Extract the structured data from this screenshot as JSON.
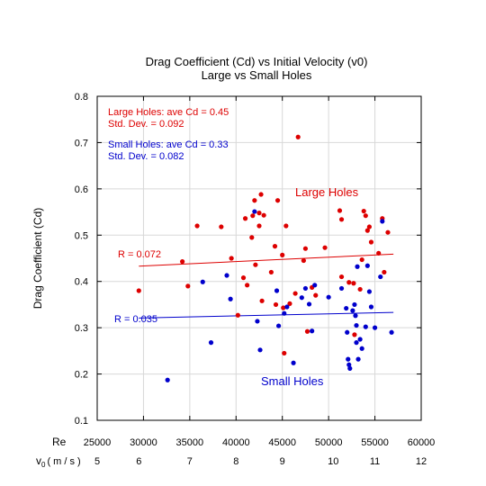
{
  "chart_data": {
    "type": "scatter",
    "title": "Drag Coefficient (Cd) vs Initial Velocity (v0)",
    "subtitle": "Large vs Small Holes",
    "ylabel": "Drag Coefficient (Cd)",
    "xlabel_re": "Re",
    "xlabel_v0_symbol": "v",
    "xlabel_v0_sub": "0",
    "xlabel_v0_unit": "( m / s )",
    "xlim": [
      25000,
      60000
    ],
    "ylim": [
      0.1,
      0.8
    ],
    "x_ticks": [
      "25000",
      "30000",
      "35000",
      "40000",
      "45000",
      "50000",
      "55000",
      "60000"
    ],
    "y_ticks": [
      "0.1",
      "0.2",
      "0.3",
      "0.4",
      "0.5",
      "0.6",
      "0.7",
      "0.8"
    ],
    "v0_ticks": [
      {
        "label": "5",
        "re": 25000
      },
      {
        "label": "6",
        "re": 29500
      },
      {
        "label": "7",
        "re": 35000
      },
      {
        "label": "8",
        "re": 40000
      },
      {
        "label": "9",
        "re": 45000
      },
      {
        "label": "10",
        "re": 50500
      },
      {
        "label": "11",
        "re": 55000
      },
      {
        "label": "12",
        "re": 60000
      }
    ],
    "grid": true,
    "series": [
      {
        "name": "Large Holes",
        "color": "#dd0000",
        "fit": {
          "x": [
            29500,
            57000
          ],
          "y": [
            0.433,
            0.459
          ]
        },
        "points": [
          [
            29500,
            0.38
          ],
          [
            34200,
            0.443
          ],
          [
            34800,
            0.39
          ],
          [
            35800,
            0.52
          ],
          [
            38400,
            0.518
          ],
          [
            39500,
            0.45
          ],
          [
            40200,
            0.327
          ],
          [
            40800,
            0.408
          ],
          [
            41000,
            0.536
          ],
          [
            41200,
            0.392
          ],
          [
            41700,
            0.495
          ],
          [
            41800,
            0.542
          ],
          [
            42000,
            0.575
          ],
          [
            42100,
            0.436
          ],
          [
            42500,
            0.548
          ],
          [
            42500,
            0.52
          ],
          [
            42700,
            0.588
          ],
          [
            42800,
            0.358
          ],
          [
            43000,
            0.543
          ],
          [
            43800,
            0.42
          ],
          [
            44200,
            0.476
          ],
          [
            44300,
            0.35
          ],
          [
            44500,
            0.575
          ],
          [
            45000,
            0.457
          ],
          [
            45100,
            0.343
          ],
          [
            45200,
            0.245
          ],
          [
            45400,
            0.52
          ],
          [
            45800,
            0.352
          ],
          [
            46400,
            0.374
          ],
          [
            46700,
            0.712
          ],
          [
            47300,
            0.445
          ],
          [
            47500,
            0.471
          ],
          [
            47700,
            0.292
          ],
          [
            48200,
            0.387
          ],
          [
            48600,
            0.37
          ],
          [
            49600,
            0.473
          ],
          [
            51200,
            0.553
          ],
          [
            51400,
            0.534
          ],
          [
            51400,
            0.41
          ],
          [
            52200,
            0.398
          ],
          [
            52700,
            0.396
          ],
          [
            52800,
            0.285
          ],
          [
            53400,
            0.383
          ],
          [
            53600,
            0.447
          ],
          [
            53800,
            0.552
          ],
          [
            54000,
            0.542
          ],
          [
            54200,
            0.51
          ],
          [
            54400,
            0.518
          ],
          [
            54600,
            0.485
          ],
          [
            55400,
            0.461
          ],
          [
            55800,
            0.536
          ],
          [
            56000,
            0.42
          ],
          [
            56400,
            0.506
          ]
        ]
      },
      {
        "name": "Small Holes",
        "color": "#0000cc",
        "fit": {
          "x": [
            29500,
            57000
          ],
          "y": [
            0.321,
            0.333
          ]
        },
        "points": [
          [
            32600,
            0.187
          ],
          [
            36400,
            0.399
          ],
          [
            37300,
            0.268
          ],
          [
            39000,
            0.413
          ],
          [
            39400,
            0.362
          ],
          [
            42000,
            0.551
          ],
          [
            42300,
            0.314
          ],
          [
            42600,
            0.252
          ],
          [
            44400,
            0.38
          ],
          [
            44600,
            0.304
          ],
          [
            45200,
            0.331
          ],
          [
            45500,
            0.345
          ],
          [
            46200,
            0.224
          ],
          [
            47100,
            0.365
          ],
          [
            47500,
            0.385
          ],
          [
            47900,
            0.351
          ],
          [
            48200,
            0.293
          ],
          [
            48500,
            0.392
          ],
          [
            50000,
            0.366
          ],
          [
            51400,
            0.385
          ],
          [
            51900,
            0.342
          ],
          [
            52000,
            0.29
          ],
          [
            52100,
            0.232
          ],
          [
            52200,
            0.22
          ],
          [
            52300,
            0.212
          ],
          [
            52600,
            0.337
          ],
          [
            52800,
            0.35
          ],
          [
            52900,
            0.326
          ],
          [
            53000,
            0.268
          ],
          [
            53000,
            0.305
          ],
          [
            53100,
            0.432
          ],
          [
            53200,
            0.232
          ],
          [
            53400,
            0.275
          ],
          [
            53600,
            0.255
          ],
          [
            54000,
            0.302
          ],
          [
            54200,
            0.434
          ],
          [
            54400,
            0.378
          ],
          [
            54600,
            0.345
          ],
          [
            55000,
            0.3
          ],
          [
            55600,
            0.41
          ],
          [
            55800,
            0.53
          ],
          [
            56800,
            0.29
          ]
        ]
      }
    ],
    "annotations": {
      "large_stats_1": "Large Holes: ave Cd = 0.45",
      "large_stats_2": "Std. Dev. = 0.092",
      "small_stats_1": "Small Holes: ave Cd = 0.33",
      "small_stats_2": "Std. Dev. = 0.082",
      "large_label": "Large Holes",
      "small_label": "Small Holes",
      "large_r": "R = 0.072",
      "small_r": "R = 0.035"
    }
  }
}
